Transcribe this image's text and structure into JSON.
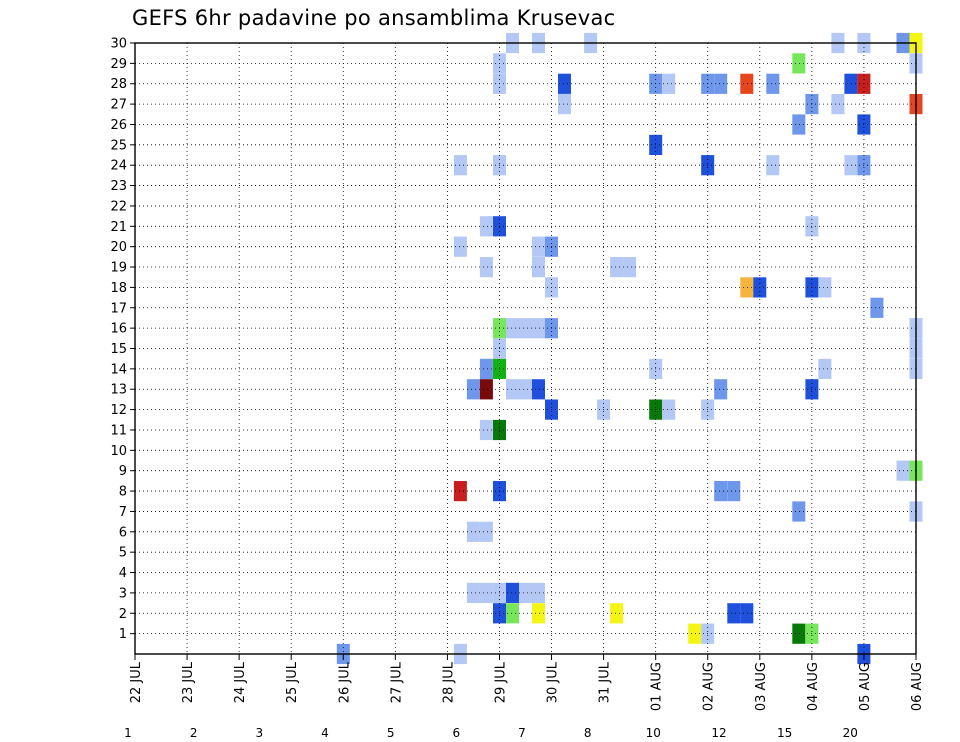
{
  "chart_data": {
    "type": "heatmap",
    "title": "GEFS 6hr padavine po ansamblima Krusevac",
    "xlabel": "",
    "ylabel": "",
    "x_ticks": [
      "22 JUL",
      "23 JUL",
      "24 JUL",
      "25 JUL",
      "26 JUL",
      "27 JUL",
      "28 JUL",
      "29 JUL",
      "30 JUL",
      "31 JUL",
      "01 AUG",
      "02 AUG",
      "03 AUG",
      "04 AUG",
      "05 AUG",
      "06 AUG"
    ],
    "y_ticks": [
      1,
      2,
      3,
      4,
      5,
      6,
      7,
      8,
      9,
      10,
      11,
      12,
      13,
      14,
      15,
      16,
      17,
      18,
      19,
      20,
      21,
      22,
      23,
      24,
      25,
      26,
      27,
      28,
      29,
      30
    ],
    "x_range_days": [
      0,
      15
    ],
    "y_range": [
      0,
      30
    ],
    "grid": true,
    "legend_position": "bottom",
    "color_levels": [
      {
        "label": "1",
        "color": "#b4c8f5"
      },
      {
        "label": "2",
        "color": "#6e96eb"
      },
      {
        "label": "3",
        "color": "#1e50dc"
      },
      {
        "label": "4",
        "color": "#78e65a"
      },
      {
        "label": "5",
        "color": "#10b410"
      },
      {
        "label": "6",
        "color": "#087808"
      },
      {
        "label": "7",
        "color": "#f5f514"
      },
      {
        "label": "8",
        "color": "#f5b43c"
      },
      {
        "label": "10",
        "color": "#f07814"
      },
      {
        "label": "12",
        "color": "#e6461e"
      },
      {
        "label": "15",
        "color": "#c81e1e"
      },
      {
        "label": "20",
        "color": "#780a0a"
      }
    ],
    "cells": [
      {
        "member": 30,
        "day": 7.25,
        "bin": 0
      },
      {
        "member": 30,
        "day": 7.75,
        "bin": 0
      },
      {
        "member": 30,
        "day": 8.75,
        "bin": 0
      },
      {
        "member": 30,
        "day": 13.5,
        "bin": 0
      },
      {
        "member": 30,
        "day": 14.0,
        "bin": 0
      },
      {
        "member": 30,
        "day": 14.75,
        "bin": 1
      },
      {
        "member": 30,
        "day": 15.0,
        "bin": 6
      },
      {
        "member": 29,
        "day": 7.0,
        "bin": 0
      },
      {
        "member": 29,
        "day": 12.75,
        "bin": 3
      },
      {
        "member": 29,
        "day": 15.0,
        "bin": 0
      },
      {
        "member": 28,
        "day": 7.0,
        "bin": 0
      },
      {
        "member": 28,
        "day": 8.25,
        "bin": 2
      },
      {
        "member": 28,
        "day": 10.0,
        "bin": 1
      },
      {
        "member": 28,
        "day": 10.25,
        "bin": 0
      },
      {
        "member": 28,
        "day": 11.0,
        "bin": 1
      },
      {
        "member": 28,
        "day": 11.25,
        "bin": 1
      },
      {
        "member": 28,
        "day": 11.75,
        "bin": 9
      },
      {
        "member": 28,
        "day": 12.25,
        "bin": 1
      },
      {
        "member": 28,
        "day": 13.75,
        "bin": 2
      },
      {
        "member": 28,
        "day": 14.0,
        "bin": 10
      },
      {
        "member": 27,
        "day": 8.25,
        "bin": 0
      },
      {
        "member": 27,
        "day": 13.0,
        "bin": 1
      },
      {
        "member": 27,
        "day": 13.5,
        "bin": 0
      },
      {
        "member": 27,
        "day": 15.0,
        "bin": 9
      },
      {
        "member": 26,
        "day": 12.75,
        "bin": 1
      },
      {
        "member": 26,
        "day": 14.0,
        "bin": 2
      },
      {
        "member": 25,
        "day": 10.0,
        "bin": 2
      },
      {
        "member": 24,
        "day": 6.25,
        "bin": 0
      },
      {
        "member": 24,
        "day": 7.0,
        "bin": 0
      },
      {
        "member": 24,
        "day": 11.0,
        "bin": 2
      },
      {
        "member": 24,
        "day": 12.25,
        "bin": 0
      },
      {
        "member": 24,
        "day": 13.75,
        "bin": 0
      },
      {
        "member": 24,
        "day": 14.0,
        "bin": 1
      },
      {
        "member": 21,
        "day": 6.75,
        "bin": 0
      },
      {
        "member": 21,
        "day": 7.0,
        "bin": 2
      },
      {
        "member": 21,
        "day": 13.0,
        "bin": 0
      },
      {
        "member": 20,
        "day": 6.25,
        "bin": 0
      },
      {
        "member": 20,
        "day": 7.75,
        "bin": 0
      },
      {
        "member": 20,
        "day": 8.0,
        "bin": 1
      },
      {
        "member": 19,
        "day": 6.75,
        "bin": 0
      },
      {
        "member": 19,
        "day": 7.75,
        "bin": 0
      },
      {
        "member": 19,
        "day": 9.25,
        "bin": 0
      },
      {
        "member": 19,
        "day": 9.5,
        "bin": 0
      },
      {
        "member": 18,
        "day": 8.0,
        "bin": 0
      },
      {
        "member": 18,
        "day": 11.75,
        "bin": 7
      },
      {
        "member": 18,
        "day": 12.0,
        "bin": 2
      },
      {
        "member": 18,
        "day": 13.0,
        "bin": 2
      },
      {
        "member": 18,
        "day": 13.25,
        "bin": 0
      },
      {
        "member": 17,
        "day": 14.25,
        "bin": 1
      },
      {
        "member": 16,
        "day": 7.0,
        "bin": 3
      },
      {
        "member": 16,
        "day": 7.25,
        "bin": 0
      },
      {
        "member": 16,
        "day": 7.5,
        "bin": 0
      },
      {
        "member": 16,
        "day": 7.75,
        "bin": 0
      },
      {
        "member": 16,
        "day": 8.0,
        "bin": 1
      },
      {
        "member": 16,
        "day": 15.0,
        "bin": 0
      },
      {
        "member": 15,
        "day": 7.0,
        "bin": 0
      },
      {
        "member": 15,
        "day": 15.0,
        "bin": 0
      },
      {
        "member": 14,
        "day": 6.75,
        "bin": 1
      },
      {
        "member": 14,
        "day": 7.0,
        "bin": 4
      },
      {
        "member": 14,
        "day": 10.0,
        "bin": 0
      },
      {
        "member": 14,
        "day": 13.25,
        "bin": 0
      },
      {
        "member": 14,
        "day": 15.0,
        "bin": 0
      },
      {
        "member": 13,
        "day": 6.5,
        "bin": 1
      },
      {
        "member": 13,
        "day": 6.75,
        "bin": 0
      },
      {
        "member": 13,
        "day": 6.75,
        "bin": 11
      },
      {
        "member": 13,
        "day": 7.25,
        "bin": 0
      },
      {
        "member": 13,
        "day": 7.5,
        "bin": 0
      },
      {
        "member": 13,
        "day": 7.75,
        "bin": 2
      },
      {
        "member": 13,
        "day": 11.25,
        "bin": 1
      },
      {
        "member": 13,
        "day": 13.0,
        "bin": 2
      },
      {
        "member": 12,
        "day": 8.0,
        "bin": 2
      },
      {
        "member": 12,
        "day": 9.0,
        "bin": 0
      },
      {
        "member": 12,
        "day": 10.0,
        "bin": 5
      },
      {
        "member": 12,
        "day": 10.25,
        "bin": 0
      },
      {
        "member": 12,
        "day": 11.0,
        "bin": 0
      },
      {
        "member": 11,
        "day": 6.75,
        "bin": 0
      },
      {
        "member": 11,
        "day": 7.0,
        "bin": 5
      },
      {
        "member": 9,
        "day": 14.75,
        "bin": 0
      },
      {
        "member": 9,
        "day": 15.0,
        "bin": 3
      },
      {
        "member": 8,
        "day": 6.25,
        "bin": 10
      },
      {
        "member": 8,
        "day": 7.0,
        "bin": 2
      },
      {
        "member": 8,
        "day": 11.25,
        "bin": 1
      },
      {
        "member": 8,
        "day": 11.5,
        "bin": 1
      },
      {
        "member": 7,
        "day": 12.75,
        "bin": 1
      },
      {
        "member": 7,
        "day": 15.0,
        "bin": 0
      },
      {
        "member": 6,
        "day": 6.5,
        "bin": 0
      },
      {
        "member": 6,
        "day": 6.75,
        "bin": 0
      },
      {
        "member": 3,
        "day": 6.5,
        "bin": 0
      },
      {
        "member": 3,
        "day": 6.75,
        "bin": 0
      },
      {
        "member": 3,
        "day": 7.0,
        "bin": 0
      },
      {
        "member": 3,
        "day": 7.25,
        "bin": 2
      },
      {
        "member": 3,
        "day": 7.5,
        "bin": 0
      },
      {
        "member": 3,
        "day": 7.75,
        "bin": 0
      },
      {
        "member": 2,
        "day": 7.0,
        "bin": 2
      },
      {
        "member": 2,
        "day": 7.25,
        "bin": 3
      },
      {
        "member": 2,
        "day": 7.75,
        "bin": 6
      },
      {
        "member": 2,
        "day": 9.25,
        "bin": 6
      },
      {
        "member": 2,
        "day": 11.5,
        "bin": 2
      },
      {
        "member": 2,
        "day": 11.75,
        "bin": 2
      },
      {
        "member": 1,
        "day": 10.75,
        "bin": 6
      },
      {
        "member": 1,
        "day": 11.0,
        "bin": 0
      },
      {
        "member": 1,
        "day": 12.75,
        "bin": 5
      },
      {
        "member": 1,
        "day": 13.0,
        "bin": 3
      },
      {
        "member": 0,
        "day": 4.0,
        "bin": 1
      },
      {
        "member": 0,
        "day": 6.25,
        "bin": 0
      },
      {
        "member": 0,
        "day": 14.0,
        "bin": 2
      }
    ]
  }
}
